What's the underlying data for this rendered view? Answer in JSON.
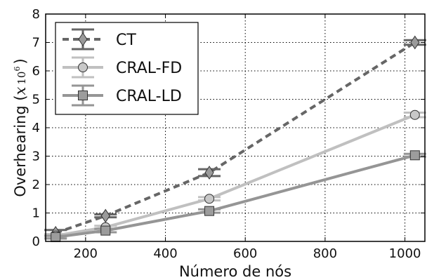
{
  "chart_data": {
    "type": "line",
    "xlabel": "Número de nós",
    "ylabel_main": "Overhearing (",
    "ylabel_var": "x",
    "ylabel_base": "10",
    "ylabel_exp": "6",
    "ylabel_close": ")",
    "xlim": [
      100,
      1050
    ],
    "ylim": [
      0,
      8
    ],
    "xticks": [
      200,
      400,
      600,
      800,
      1000
    ],
    "yticks": [
      0,
      1,
      2,
      3,
      4,
      5,
      6,
      7,
      8
    ],
    "grid": true,
    "grid_style": "dotted",
    "legend_position": "top-left",
    "series": [
      {
        "name": "CT",
        "marker": "diamond",
        "line_style": "dashed",
        "color": "#666666",
        "marker_fill": "#9a9a9a",
        "x": [
          125,
          250,
          510,
          1025
        ],
        "y": [
          0.3,
          0.9,
          2.42,
          7.0
        ],
        "err": [
          0.1,
          0.05,
          0.12,
          0.08
        ]
      },
      {
        "name": "CRAL-FD",
        "marker": "circle",
        "line_style": "solid",
        "color": "#c0c0c0",
        "marker_fill": "#c8c8c8",
        "x": [
          125,
          250,
          510,
          1025
        ],
        "y": [
          0.2,
          0.5,
          1.5,
          4.45
        ],
        "err": [
          0.06,
          0.05,
          0.06,
          0.08
        ]
      },
      {
        "name": "CRAL-LD",
        "marker": "square",
        "line_style": "solid",
        "color": "#959595",
        "marker_fill": "#9c9c9c",
        "x": [
          125,
          250,
          510,
          1025
        ],
        "y": [
          0.15,
          0.38,
          1.07,
          3.03
        ],
        "err": [
          0.05,
          0.06,
          0.06,
          0.05
        ]
      }
    ]
  }
}
